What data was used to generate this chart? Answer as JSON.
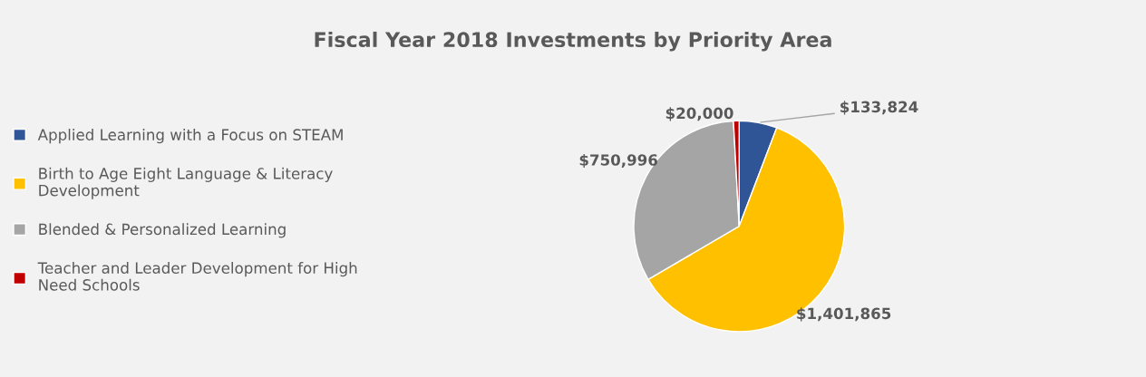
{
  "chart_data": {
    "type": "pie",
    "title": "Fiscal Year 2018 Investments by Priority Area",
    "categories": [
      "Applied Learning with a Focus on STEAM",
      "Birth to Age Eight Language & Literacy Development",
      "Blended & Personalized Learning",
      "Teacher and Leader Development for High Need Schools"
    ],
    "values": [
      133824,
      1401865,
      750996,
      20000
    ],
    "value_labels": [
      "$133,824",
      "$1,401,865",
      "$750,996",
      "$20,000"
    ],
    "colors": [
      "#2f5597",
      "#ffc000",
      "#a5a5a5",
      "#c00000"
    ],
    "legend": "left"
  }
}
